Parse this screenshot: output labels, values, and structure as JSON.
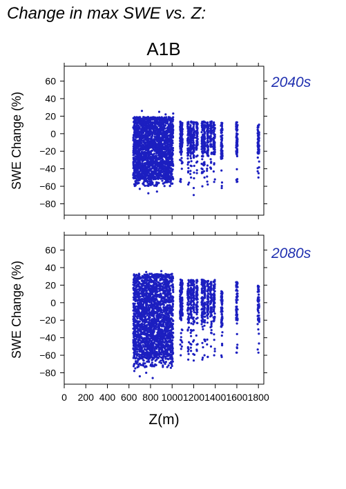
{
  "page_title": "Change in max SWE vs. Z:",
  "scenario": "A1B",
  "colors": {
    "points": "#1c1fc0",
    "period_label": "#2030b0",
    "text": "#000000"
  },
  "chart_data": [
    {
      "type": "scatter",
      "period_label": "2040s",
      "ylabel": "SWE Change (%)",
      "xlabel": "",
      "xlim": [
        0,
        1850
      ],
      "ylim": [
        -93,
        77
      ],
      "xticks": [
        0,
        200,
        400,
        600,
        800,
        1000,
        1200,
        1400,
        1600,
        1800
      ],
      "yticks": [
        -80,
        -60,
        -40,
        -20,
        0,
        20,
        40,
        60
      ],
      "ytick_labels": [
        "−80",
        "−60",
        "−40",
        "−20",
        "0",
        "20",
        "40",
        "60"
      ],
      "show_xtick_labels": false,
      "dense_band": {
        "x": [
          640,
          1010
        ],
        "y": [
          -60,
          19
        ],
        "outliers": [
          [
            720,
            26
          ],
          [
            880,
            25
          ],
          [
            1010,
            23
          ],
          [
            940,
            22
          ],
          [
            860,
            -66
          ],
          [
            780,
            -68
          ],
          [
            700,
            -63
          ],
          [
            1200,
            -70
          ]
        ]
      },
      "columns": [
        {
          "x": 1080,
          "y": [
            -55,
            14
          ]
        },
        {
          "x": 1090,
          "y": [
            -40,
            13
          ]
        },
        {
          "x": 1150,
          "y": [
            -58,
            14
          ]
        },
        {
          "x": 1175,
          "y": [
            -50,
            14
          ]
        },
        {
          "x": 1200,
          "y": [
            -62,
            14
          ]
        },
        {
          "x": 1230,
          "y": [
            -45,
            13
          ]
        },
        {
          "x": 1280,
          "y": [
            -60,
            14
          ]
        },
        {
          "x": 1300,
          "y": [
            -50,
            14
          ]
        },
        {
          "x": 1330,
          "y": [
            -58,
            14
          ]
        },
        {
          "x": 1360,
          "y": [
            -40,
            14
          ]
        },
        {
          "x": 1390,
          "y": [
            -55,
            13
          ]
        },
        {
          "x": 1460,
          "y": [
            -62,
            13
          ]
        },
        {
          "x": 1600,
          "y": [
            -55,
            13
          ]
        },
        {
          "x": 1800,
          "y": [
            -50,
            11
          ]
        }
      ]
    },
    {
      "type": "scatter",
      "period_label": "2080s",
      "ylabel": "SWE Change (%)",
      "xlabel": "Z(m)",
      "xlim": [
        0,
        1850
      ],
      "ylim": [
        -93,
        77
      ],
      "xticks": [
        0,
        200,
        400,
        600,
        800,
        1000,
        1200,
        1400,
        1600,
        1800
      ],
      "xtick_labels": [
        "0",
        "200",
        "400",
        "600",
        "800",
        "1000",
        "1200",
        "1400",
        "1600",
        "1800"
      ],
      "yticks": [
        -80,
        -60,
        -40,
        -20,
        0,
        20,
        40,
        60
      ],
      "ytick_labels": [
        "−80",
        "−60",
        "−40",
        "−20",
        "0",
        "20",
        "40",
        "60"
      ],
      "show_xtick_labels": true,
      "dense_band": {
        "x": [
          640,
          1010
        ],
        "y": [
          -75,
          33
        ],
        "outliers": [
          [
            900,
            36
          ],
          [
            760,
            35
          ],
          [
            820,
            -86
          ],
          [
            700,
            -84
          ],
          [
            760,
            -80
          ],
          [
            650,
            -78
          ]
        ]
      },
      "columns": [
        {
          "x": 1080,
          "y": [
            -60,
            27
          ]
        },
        {
          "x": 1090,
          "y": [
            -50,
            26
          ]
        },
        {
          "x": 1150,
          "y": [
            -65,
            27
          ]
        },
        {
          "x": 1175,
          "y": [
            -55,
            27
          ]
        },
        {
          "x": 1200,
          "y": [
            -66,
            26
          ]
        },
        {
          "x": 1230,
          "y": [
            -55,
            26
          ]
        },
        {
          "x": 1280,
          "y": [
            -65,
            27
          ]
        },
        {
          "x": 1300,
          "y": [
            -60,
            26
          ]
        },
        {
          "x": 1330,
          "y": [
            -62,
            26
          ]
        },
        {
          "x": 1360,
          "y": [
            -50,
            26
          ]
        },
        {
          "x": 1390,
          "y": [
            -60,
            26
          ]
        },
        {
          "x": 1460,
          "y": [
            -62,
            13
          ]
        },
        {
          "x": 1600,
          "y": [
            -57,
            24
          ]
        },
        {
          "x": 1800,
          "y": [
            -57,
            20
          ]
        }
      ]
    }
  ]
}
